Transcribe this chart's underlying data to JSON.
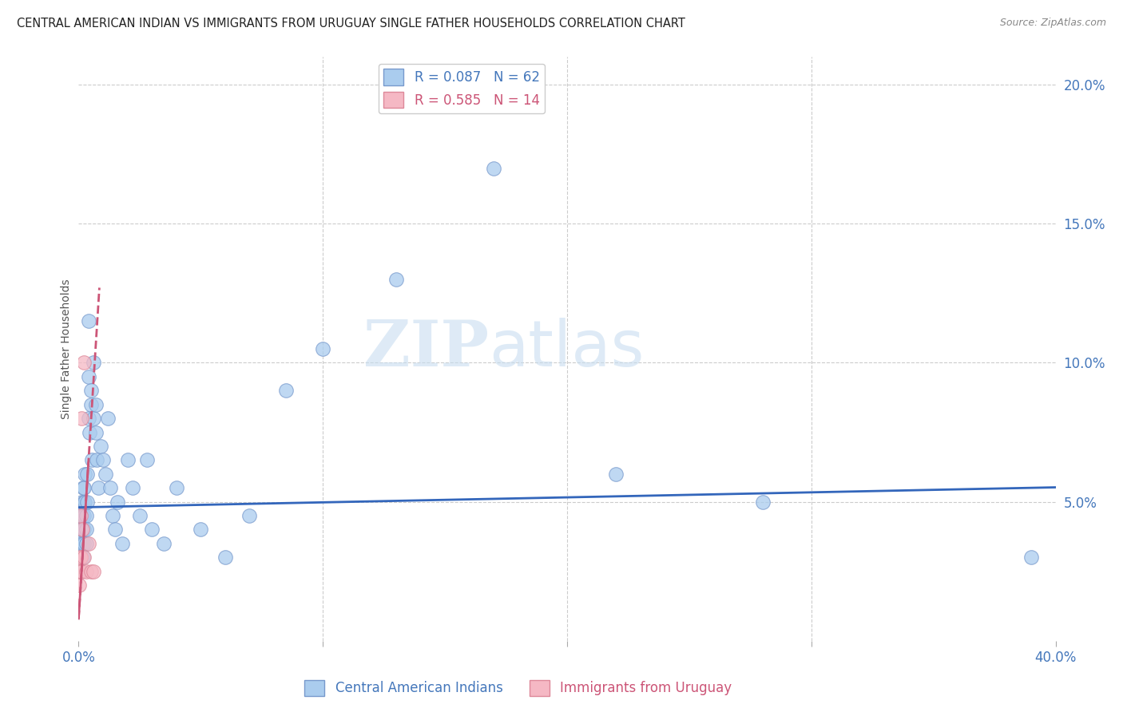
{
  "title": "CENTRAL AMERICAN INDIAN VS IMMIGRANTS FROM URUGUAY SINGLE FATHER HOUSEHOLDS CORRELATION CHART",
  "source": "Source: ZipAtlas.com",
  "ylabel": "Single Father Households",
  "x_min": 0.0,
  "x_max": 0.4,
  "y_min": 0.0,
  "y_max": 0.21,
  "watermark_zip": "ZIP",
  "watermark_atlas": "atlas",
  "blue_scatter_color": "#aaccee",
  "blue_edge_color": "#7799cc",
  "pink_scatter_color": "#f5b8c4",
  "pink_edge_color": "#dd8899",
  "blue_line_color": "#3366bb",
  "pink_line_color": "#cc5577",
  "grid_color": "#cccccc",
  "title_color": "#222222",
  "source_color": "#888888",
  "tick_color": "#4477bb",
  "ylabel_color": "#555555",
  "blue_intercept": 0.048,
  "blue_slope": 0.018,
  "pink_intercept": 0.008,
  "pink_slope": 14.0,
  "pink_line_x_end": 0.0085,
  "blue_points_x": [
    0.0005,
    0.0007,
    0.001,
    0.001,
    0.0012,
    0.0013,
    0.0015,
    0.0015,
    0.0016,
    0.0017,
    0.0018,
    0.002,
    0.002,
    0.002,
    0.0022,
    0.0023,
    0.0025,
    0.0025,
    0.003,
    0.003,
    0.003,
    0.0033,
    0.0035,
    0.004,
    0.004,
    0.0042,
    0.0045,
    0.005,
    0.005,
    0.0055,
    0.006,
    0.006,
    0.007,
    0.007,
    0.0075,
    0.008,
    0.009,
    0.01,
    0.011,
    0.012,
    0.013,
    0.014,
    0.015,
    0.016,
    0.018,
    0.02,
    0.022,
    0.025,
    0.028,
    0.03,
    0.035,
    0.04,
    0.05,
    0.06,
    0.07,
    0.085,
    0.1,
    0.13,
    0.17,
    0.22,
    0.28,
    0.39
  ],
  "blue_points_y": [
    0.035,
    0.04,
    0.025,
    0.045,
    0.03,
    0.05,
    0.035,
    0.04,
    0.045,
    0.055,
    0.03,
    0.05,
    0.045,
    0.04,
    0.055,
    0.035,
    0.06,
    0.05,
    0.045,
    0.04,
    0.035,
    0.06,
    0.05,
    0.115,
    0.095,
    0.08,
    0.075,
    0.09,
    0.085,
    0.065,
    0.1,
    0.08,
    0.085,
    0.075,
    0.065,
    0.055,
    0.07,
    0.065,
    0.06,
    0.08,
    0.055,
    0.045,
    0.04,
    0.05,
    0.035,
    0.065,
    0.055,
    0.045,
    0.065,
    0.04,
    0.035,
    0.055,
    0.04,
    0.03,
    0.045,
    0.09,
    0.105,
    0.13,
    0.17,
    0.06,
    0.05,
    0.03
  ],
  "pink_points_x": [
    0.0003,
    0.0005,
    0.0007,
    0.001,
    0.001,
    0.0012,
    0.0013,
    0.0015,
    0.002,
    0.002,
    0.003,
    0.004,
    0.005,
    0.006
  ],
  "pink_points_y": [
    0.02,
    0.025,
    0.03,
    0.045,
    0.03,
    0.025,
    0.08,
    0.04,
    0.1,
    0.03,
    0.025,
    0.035,
    0.025,
    0.025
  ]
}
